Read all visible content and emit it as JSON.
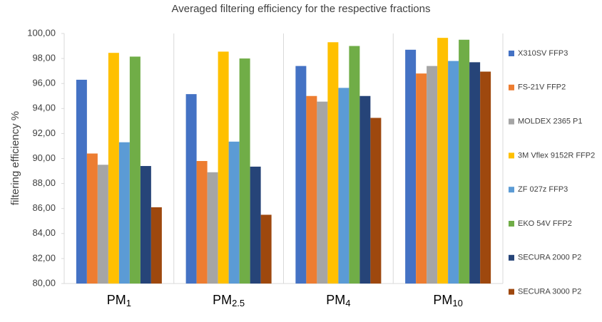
{
  "chart_data": {
    "type": "bar",
    "title": "Averaged filtering efficiency for the respective fractions",
    "y_label": "filtering efficiency %",
    "categories": [
      "PM1",
      "PM2.5",
      "PM4",
      "PM10"
    ],
    "series": [
      {
        "name": "X310SV  FFP3",
        "color": "#4472c4",
        "values": [
          96.3,
          95.15,
          97.4,
          98.7
        ]
      },
      {
        "name": "FS-21V FFP2",
        "color": "#ed7d31",
        "values": [
          90.4,
          89.8,
          95.0,
          96.8
        ]
      },
      {
        "name": "MOLDEX 2365 P1",
        "color": "#a5a5a5",
        "values": [
          89.5,
          88.9,
          94.55,
          97.4
        ]
      },
      {
        "name": "3M Vflex 9152R FFP2",
        "color": "#ffc000",
        "values": [
          98.45,
          98.55,
          99.3,
          99.65
        ]
      },
      {
        "name": "ZF 027z FFP3",
        "color": "#5b9bd5",
        "values": [
          91.3,
          91.35,
          95.65,
          97.8
        ]
      },
      {
        "name": "EKO 54V FFP2",
        "color": "#70ad47",
        "values": [
          98.15,
          98.0,
          99.0,
          99.5
        ]
      },
      {
        "name": "SECURA 2000 P2",
        "color": "#264478",
        "values": [
          89.4,
          89.35,
          95.0,
          97.7
        ]
      },
      {
        "name": "SECURA 3000 P2",
        "color": "#9e480e",
        "values": [
          86.1,
          85.5,
          93.25,
          96.95
        ]
      }
    ],
    "ylim": [
      80,
      100
    ],
    "yticks": [
      {
        "value": 80,
        "label": "80,00"
      },
      {
        "value": 82,
        "label": "82,00"
      },
      {
        "value": 84,
        "label": "84,00"
      },
      {
        "value": 86,
        "label": "86,00"
      },
      {
        "value": 88,
        "label": "88,00"
      },
      {
        "value": 90,
        "label": "90,00"
      },
      {
        "value": 92,
        "label": "92,00"
      },
      {
        "value": 94,
        "label": "94,00"
      },
      {
        "value": 96,
        "label": "96,00"
      },
      {
        "value": 98,
        "label": "98,00"
      },
      {
        "value": 100,
        "label": "100,00"
      }
    ],
    "legend": "right"
  }
}
